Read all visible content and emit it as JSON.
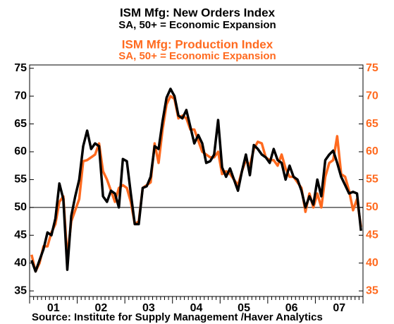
{
  "chart_data": {
    "type": "line",
    "title": "ISM Mfg: New Orders Index",
    "subtitle": "SA, 50+ = Economic Expansion",
    "title2": "ISM Mfg: Production Index",
    "subtitle2": "SA, 50+ = Economic Expansion",
    "source": "Source:  Institute for Supply Management /Haver Analytics",
    "categories": [
      null,
      null,
      null,
      null,
      null,
      null,
      "01",
      null,
      null,
      null,
      null,
      null,
      null,
      null,
      null,
      null,
      null,
      null,
      "02",
      null,
      null,
      null,
      null,
      null,
      null,
      null,
      null,
      null,
      null,
      null,
      "03",
      null,
      null,
      null,
      null,
      null,
      null,
      null,
      null,
      null,
      null,
      null,
      "04",
      null,
      null,
      null,
      null,
      null,
      null,
      null,
      null,
      null,
      null,
      null,
      "05",
      null,
      null,
      null,
      null,
      null,
      null,
      null,
      null,
      null,
      null,
      null,
      "06",
      null,
      null,
      null,
      null,
      null,
      null,
      null,
      null,
      null,
      null,
      null,
      "07",
      null,
      null,
      null,
      null,
      null
    ],
    "ylim": [
      34,
      75.6
    ],
    "yticks": [
      35,
      40,
      45,
      50,
      55,
      60,
      65,
      70,
      75
    ],
    "y2lim": [
      34,
      75.6
    ],
    "y2ticks": [
      35,
      40,
      45,
      50,
      55,
      60,
      65,
      70,
      75
    ],
    "reference_line": 50,
    "series": [
      {
        "name": "ISM Mfg: New Orders Index",
        "color": "#000000",
        "axis": "y",
        "values": [
          40.5,
          38.5,
          40.5,
          42.5,
          45.5,
          45,
          48,
          54.3,
          51.5,
          38.8,
          48.5,
          52,
          55,
          61,
          63.8,
          60.5,
          61.5,
          61,
          52,
          51,
          53,
          52.5,
          50,
          58.7,
          58.3,
          52.5,
          47,
          47,
          53.5,
          53.8,
          55.5,
          61,
          60.5,
          65.5,
          69.7,
          71.3,
          70,
          66.5,
          66,
          67.5,
          64.5,
          61.5,
          63,
          61.5,
          58,
          58.3,
          59.5,
          65.7,
          57.2,
          55.5,
          57,
          55,
          53,
          56.5,
          59.5,
          55.8,
          61.2,
          60.5,
          59.5,
          59,
          58,
          60.5,
          58.5,
          58,
          55,
          57.5,
          55.5,
          55,
          53,
          50,
          52,
          50.5,
          55,
          52,
          58.5,
          59.5,
          60.2,
          58,
          55.5,
          54,
          52.5,
          52.8,
          52.5,
          45.8
        ]
      },
      {
        "name": "ISM Mfg: Production Index",
        "color": "#ff6a1f",
        "axis": "y2",
        "values": [
          41.5,
          38.5,
          40,
          43,
          43,
          45.5,
          47,
          51,
          52,
          41,
          47.5,
          49.5,
          51.5,
          58.3,
          58.5,
          59,
          59.5,
          61.5,
          56.5,
          55,
          53,
          51,
          53.5,
          54,
          53.5,
          51,
          47,
          47.5,
          53.5,
          54,
          54.5,
          61.5,
          58,
          64,
          68.5,
          70,
          69.5,
          66,
          66.5,
          66,
          64,
          64,
          62,
          60,
          59.5,
          59,
          59,
          60,
          56,
          56.5,
          56,
          55,
          54,
          56.5,
          58.5,
          57.5,
          60.5,
          61.8,
          61.5,
          59,
          58.5,
          58.5,
          57.5,
          59.5,
          57,
          55.5,
          55.5,
          54.5,
          53.5,
          49.2,
          52.5,
          50,
          52.5,
          50,
          55.5,
          58,
          58.5,
          62.8,
          56,
          55.5,
          53,
          49.5,
          51.5,
          46.5
        ]
      }
    ]
  }
}
